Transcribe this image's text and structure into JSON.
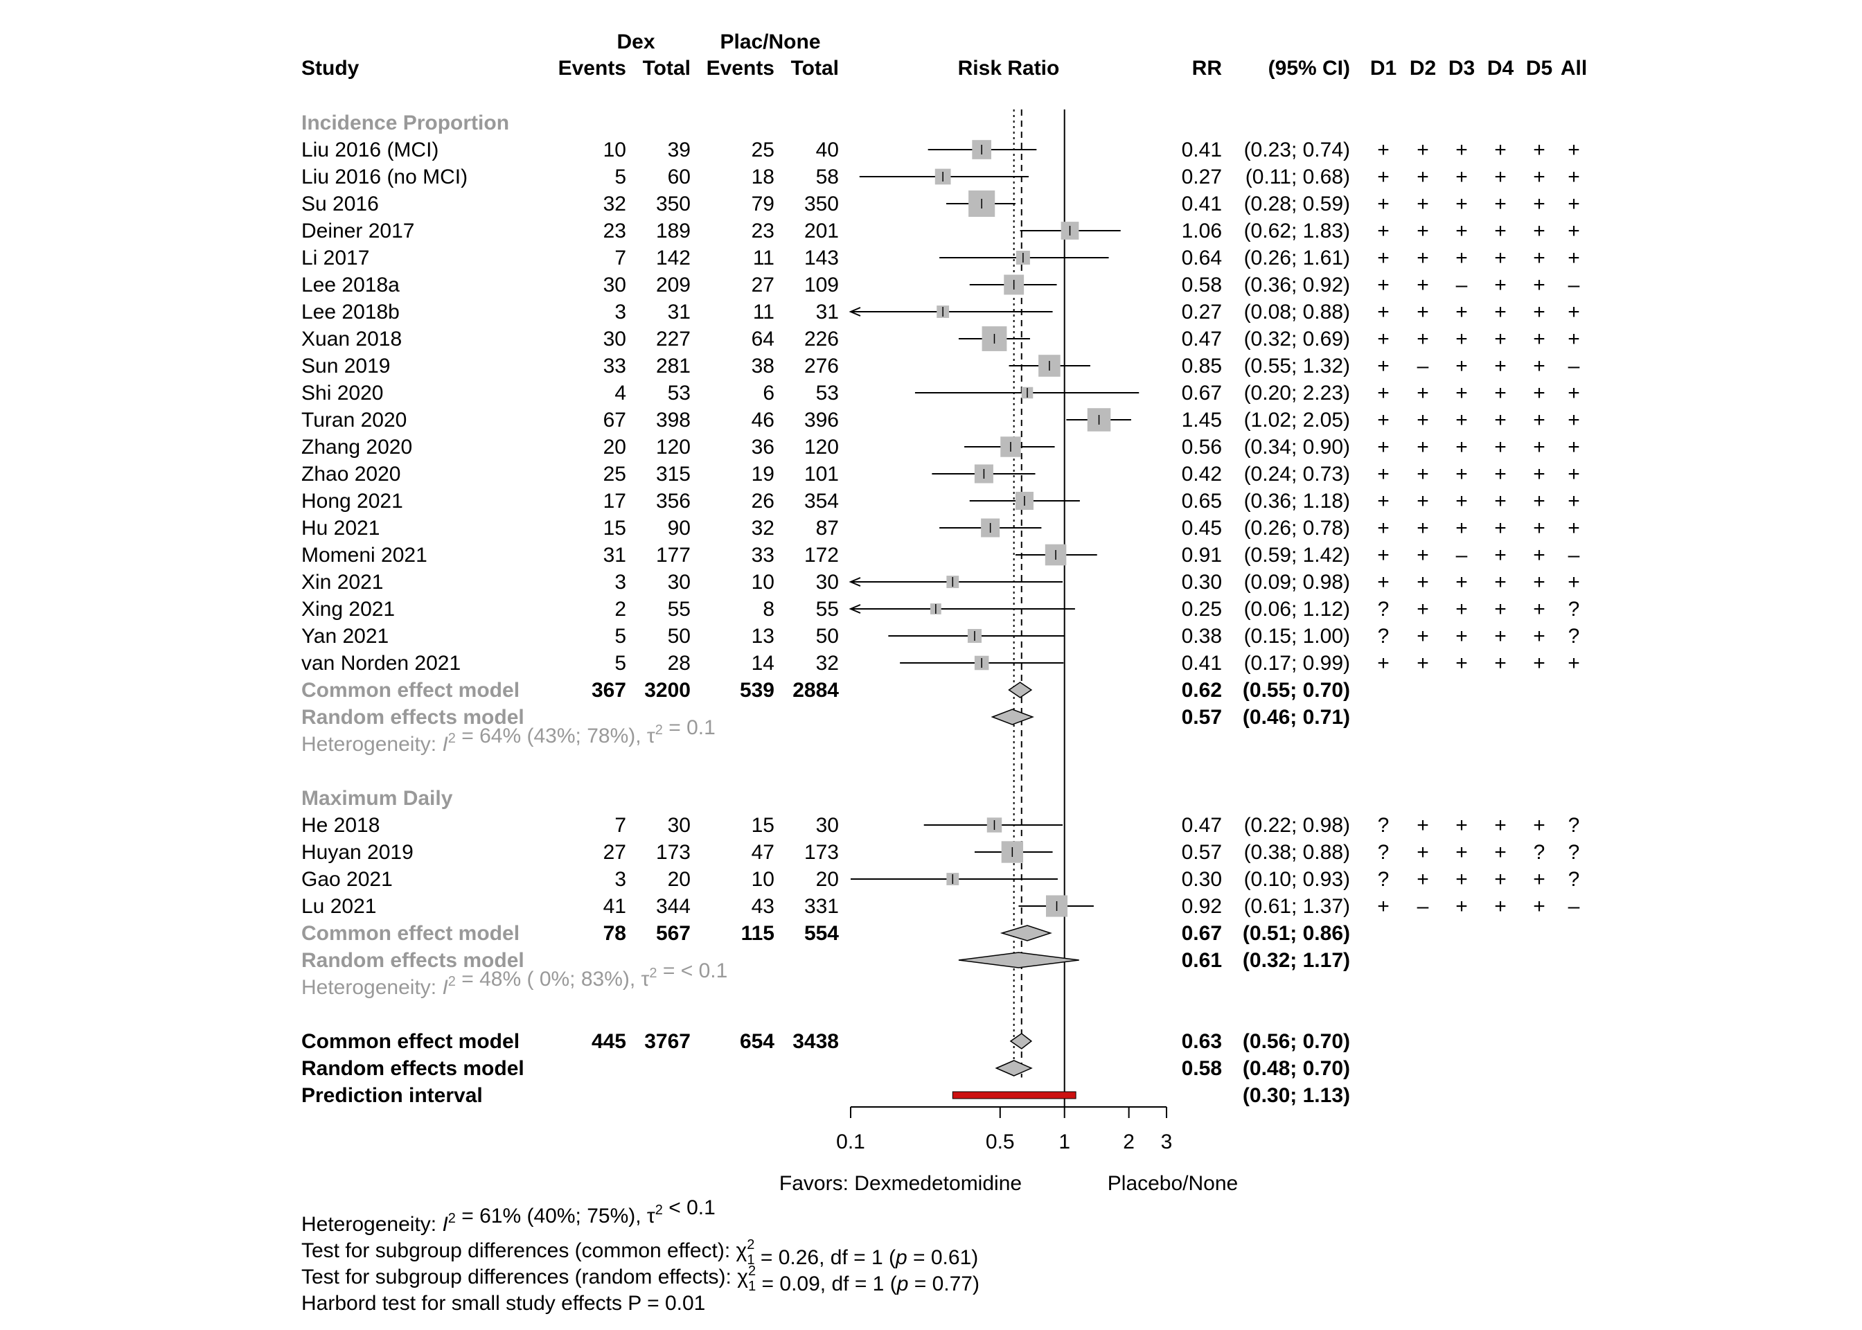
{
  "chart_data": {
    "type": "forest",
    "scale": "log",
    "headers": {
      "study": "Study",
      "dex": "Dex",
      "plac": "Plac/None",
      "events": "Events",
      "total": "Total",
      "risk_ratio": "Risk Ratio",
      "rr": "RR",
      "ci": "(95% CI)",
      "domains": [
        "D1",
        "D2",
        "D3",
        "D4",
        "D5",
        "All"
      ]
    },
    "groups": [
      {
        "name": "Incidence Proportion",
        "studies": [
          {
            "study": "Liu 2016 (MCI)",
            "e1": "10",
            "n1": "39",
            "e2": "25",
            "n2": "40",
            "rr": 0.41,
            "lo": 0.23,
            "hi": 0.74,
            "w": 3.2,
            "rr_text": "0.41",
            "ci_text": "(0.23; 0.74)",
            "rob": [
              "+",
              "+",
              "+",
              "+",
              "+",
              "+"
            ]
          },
          {
            "study": "Liu 2016 (no MCI)",
            "e1": "5",
            "n1": "60",
            "e2": "18",
            "n2": "58",
            "rr": 0.27,
            "lo": 0.11,
            "hi": 0.68,
            "w": 1.8,
            "rr_text": "0.27",
            "ci_text": "(0.11; 0.68)",
            "rob": [
              "+",
              "+",
              "+",
              "+",
              "+",
              "+"
            ]
          },
          {
            "study": "Su 2016",
            "e1": "32",
            "n1": "350",
            "e2": "79",
            "n2": "350",
            "rr": 0.41,
            "lo": 0.28,
            "hi": 0.59,
            "w": 7.5,
            "rr_text": "0.41",
            "ci_text": "(0.28; 0.59)",
            "rob": [
              "+",
              "+",
              "+",
              "+",
              "+",
              "+"
            ]
          },
          {
            "study": "Deiner 2017",
            "e1": "23",
            "n1": "189",
            "e2": "23",
            "n2": "201",
            "rr": 1.06,
            "lo": 0.62,
            "hi": 1.83,
            "w": 2.6,
            "rr_text": "1.06",
            "ci_text": "(0.62; 1.83)",
            "rob": [
              "+",
              "+",
              "+",
              "+",
              "+",
              "+"
            ]
          },
          {
            "study": "Li 2017",
            "e1": "7",
            "n1": "142",
            "e2": "11",
            "n2": "143",
            "rr": 0.64,
            "lo": 0.26,
            "hi": 1.61,
            "w": 1.2,
            "rr_text": "0.64",
            "ci_text": "(0.26; 1.61)",
            "rob": [
              "+",
              "+",
              "+",
              "+",
              "+",
              "+"
            ]
          },
          {
            "study": "Lee 2018a",
            "e1": "30",
            "n1": "209",
            "e2": "27",
            "n2": "109",
            "rr": 0.58,
            "lo": 0.36,
            "hi": 0.92,
            "w": 3.6,
            "rr_text": "0.58",
            "ci_text": "(0.36; 0.92)",
            "rob": [
              "+",
              "+",
              "–",
              "+",
              "+",
              "–"
            ]
          },
          {
            "study": "Lee 2018b",
            "e1": "3",
            "n1": "31",
            "e2": "11",
            "n2": "31",
            "rr": 0.27,
            "lo": 0.08,
            "hi": 0.88,
            "w": 0.8,
            "rr_text": "0.27",
            "ci_text": "(0.08; 0.88)",
            "rob": [
              "+",
              "+",
              "+",
              "+",
              "+",
              "+"
            ]
          },
          {
            "study": "Xuan 2018",
            "e1": "30",
            "n1": "227",
            "e2": "64",
            "n2": "226",
            "rr": 0.47,
            "lo": 0.32,
            "hi": 0.69,
            "w": 6.4,
            "rr_text": "0.47",
            "ci_text": "(0.32; 0.69)",
            "rob": [
              "+",
              "+",
              "+",
              "+",
              "+",
              "+"
            ]
          },
          {
            "study": "Sun 2019",
            "e1": "33",
            "n1": "281",
            "e2": "38",
            "n2": "276",
            "rr": 0.85,
            "lo": 0.55,
            "hi": 1.32,
            "w": 4.6,
            "rr_text": "0.85",
            "ci_text": "(0.55; 1.32)",
            "rob": [
              "+",
              "–",
              "+",
              "+",
              "+",
              "–"
            ]
          },
          {
            "study": "Shi 2020",
            "e1": "4",
            "n1": "53",
            "e2": "6",
            "n2": "53",
            "rr": 0.67,
            "lo": 0.2,
            "hi": 2.23,
            "w": 0.6,
            "rr_text": "0.67",
            "ci_text": "(0.20; 2.23)",
            "rob": [
              "+",
              "+",
              "+",
              "+",
              "+",
              "+"
            ]
          },
          {
            "study": "Turan 2020",
            "e1": "67",
            "n1": "398",
            "e2": "46",
            "n2": "396",
            "rr": 1.45,
            "lo": 1.02,
            "hi": 2.05,
            "w": 5.4,
            "rr_text": "1.45",
            "ci_text": "(1.02; 2.05)",
            "rob": [
              "+",
              "+",
              "+",
              "+",
              "+",
              "+"
            ]
          },
          {
            "study": "Zhang 2020",
            "e1": "20",
            "n1": "120",
            "e2": "36",
            "n2": "120",
            "rr": 0.56,
            "lo": 0.34,
            "hi": 0.9,
            "w": 3.8,
            "rr_text": "0.56",
            "ci_text": "(0.34; 0.90)",
            "rob": [
              "+",
              "+",
              "+",
              "+",
              "+",
              "+"
            ]
          },
          {
            "study": "Zhao 2020",
            "e1": "25",
            "n1": "315",
            "e2": "19",
            "n2": "101",
            "rr": 0.42,
            "lo": 0.24,
            "hi": 0.73,
            "w": 3.0,
            "rr_text": "0.42",
            "ci_text": "(0.24; 0.73)",
            "rob": [
              "+",
              "+",
              "+",
              "+",
              "+",
              "+"
            ]
          },
          {
            "study": "Hong 2021",
            "e1": "17",
            "n1": "356",
            "e2": "26",
            "n2": "354",
            "rr": 0.65,
            "lo": 0.36,
            "hi": 1.18,
            "w": 2.7,
            "rr_text": "0.65",
            "ci_text": "(0.36; 1.18)",
            "rob": [
              "+",
              "+",
              "+",
              "+",
              "+",
              "+"
            ]
          },
          {
            "study": "Hu 2021",
            "e1": "15",
            "n1": "90",
            "e2": "32",
            "n2": "87",
            "rr": 0.45,
            "lo": 0.26,
            "hi": 0.78,
            "w": 3.0,
            "rr_text": "0.45",
            "ci_text": "(0.26; 0.78)",
            "rob": [
              "+",
              "+",
              "+",
              "+",
              "+",
              "+"
            ]
          },
          {
            "study": "Momeni 2021",
            "e1": "31",
            "n1": "177",
            "e2": "33",
            "n2": "172",
            "rr": 0.91,
            "lo": 0.59,
            "hi": 1.42,
            "w": 4.2,
            "rr_text": "0.91",
            "ci_text": "(0.59; 1.42)",
            "rob": [
              "+",
              "+",
              "–",
              "+",
              "+",
              "–"
            ]
          },
          {
            "study": "Xin 2021",
            "e1": "3",
            "n1": "30",
            "e2": "10",
            "n2": "30",
            "rr": 0.3,
            "lo": 0.09,
            "hi": 0.98,
            "w": 0.8,
            "rr_text": "0.30",
            "ci_text": "(0.09; 0.98)",
            "rob": [
              "+",
              "+",
              "+",
              "+",
              "+",
              "+"
            ]
          },
          {
            "study": "Xing 2021",
            "e1": "2",
            "n1": "55",
            "e2": "8",
            "n2": "55",
            "rr": 0.25,
            "lo": 0.06,
            "hi": 1.12,
            "w": 0.5,
            "rr_text": "0.25",
            "ci_text": "(0.06; 1.12)",
            "rob": [
              "?",
              "+",
              "+",
              "+",
              "+",
              "?"
            ]
          },
          {
            "study": "Yan 2021",
            "e1": "5",
            "n1": "50",
            "e2": "13",
            "n2": "50",
            "rr": 0.38,
            "lo": 0.15,
            "hi": 1.0,
            "w": 1.2,
            "rr_text": "0.38",
            "ci_text": "(0.15; 1.00)",
            "rob": [
              "?",
              "+",
              "+",
              "+",
              "+",
              "?"
            ]
          },
          {
            "study": "van Norden 2021",
            "e1": "5",
            "n1": "28",
            "e2": "14",
            "n2": "32",
            "rr": 0.41,
            "lo": 0.17,
            "hi": 0.99,
            "w": 1.3,
            "rr_text": "0.41",
            "ci_text": "(0.17; 0.99)",
            "rob": [
              "+",
              "+",
              "+",
              "+",
              "+",
              "+"
            ]
          }
        ],
        "common": {
          "label": "Common effect model",
          "e1": "367",
          "n1": "3200",
          "e2": "539",
          "n2": "2884",
          "rr": 0.62,
          "lo": 0.55,
          "hi": 0.7,
          "rr_text": "0.62",
          "ci_text": "(0.55; 0.70)"
        },
        "random": {
          "label": "Random effects model",
          "rr": 0.57,
          "lo": 0.46,
          "hi": 0.71,
          "rr_text": "0.57",
          "ci_text": "(0.46; 0.71)"
        },
        "het": {
          "pre": "Heterogeneity: ",
          "i": "I",
          "sup": "2",
          "mid": " = 64% (43%; 78%), τ",
          "sup2": "2",
          "post": " = 0.1"
        }
      },
      {
        "name": "Maximum Daily",
        "studies": [
          {
            "study": "He 2018",
            "e1": "7",
            "n1": "30",
            "e2": "15",
            "n2": "30",
            "rr": 0.47,
            "lo": 0.22,
            "hi": 0.98,
            "w": 1.5,
            "rr_text": "0.47",
            "ci_text": "(0.22; 0.98)",
            "rob": [
              "?",
              "+",
              "+",
              "+",
              "+",
              "?"
            ]
          },
          {
            "study": "Huyan 2019",
            "e1": "27",
            "n1": "173",
            "e2": "47",
            "n2": "173",
            "rr": 0.57,
            "lo": 0.38,
            "hi": 0.88,
            "w": 4.5,
            "rr_text": "0.57",
            "ci_text": "(0.38; 0.88)",
            "rob": [
              "?",
              "+",
              "+",
              "+",
              "?",
              "?"
            ]
          },
          {
            "study": "Gao 2021",
            "e1": "3",
            "n1": "20",
            "e2": "10",
            "n2": "20",
            "rr": 0.3,
            "lo": 0.1,
            "hi": 0.93,
            "w": 0.8,
            "rr_text": "0.30",
            "ci_text": "(0.10; 0.93)",
            "rob": [
              "?",
              "+",
              "+",
              "+",
              "+",
              "?"
            ]
          },
          {
            "study": "Lu 2021",
            "e1": "41",
            "n1": "344",
            "e2": "43",
            "n2": "331",
            "rr": 0.92,
            "lo": 0.61,
            "hi": 1.37,
            "w": 4.4,
            "rr_text": "0.92",
            "ci_text": "(0.61; 1.37)",
            "rob": [
              "+",
              "–",
              "+",
              "+",
              "+",
              "–"
            ]
          }
        ],
        "common": {
          "label": "Common effect model",
          "e1": "78",
          "n1": "567",
          "e2": "115",
          "n2": "554",
          "rr": 0.67,
          "lo": 0.51,
          "hi": 0.86,
          "rr_text": "0.67",
          "ci_text": "(0.51; 0.86)"
        },
        "random": {
          "label": "Random effects model",
          "rr": 0.61,
          "lo": 0.32,
          "hi": 1.17,
          "rr_text": "0.61",
          "ci_text": "(0.32; 1.17)"
        },
        "het": {
          "pre": "Heterogeneity: ",
          "i": "I",
          "sup": "2",
          "mid": " = 48% ( 0%; 83%), τ",
          "sup2": "2",
          "post": " = < 0.1"
        }
      }
    ],
    "overall": {
      "common": {
        "label": "Common effect model",
        "e1": "445",
        "n1": "3767",
        "e2": "654",
        "n2": "3438",
        "rr": 0.63,
        "lo": 0.56,
        "hi": 0.7,
        "rr_text": "0.63",
        "ci_text": "(0.56; 0.70)"
      },
      "random": {
        "label": "Random effects model",
        "rr": 0.58,
        "lo": 0.48,
        "hi": 0.7,
        "rr_text": "0.58",
        "ci_text": "(0.48; 0.70)"
      },
      "prediction": {
        "label": "Prediction interval",
        "lo": 0.3,
        "hi": 1.13,
        "ci_text": "(0.30; 1.13)"
      }
    },
    "axis": {
      "ticks": [
        0.1,
        0.5,
        1,
        2,
        3
      ],
      "tick_labels": [
        "0.1",
        "0.5",
        "1",
        "2",
        "3"
      ],
      "xlim": [
        0.1,
        3
      ],
      "left_label": "Favors: Dexmedetomidine",
      "right_label": "Placebo/None"
    },
    "colors": {
      "box": "#bbbbbb",
      "diamond": "#bbbbbb",
      "prediction": "#cc1111",
      "grey_text": "#999999"
    },
    "footer": [
      {
        "parts": [
          {
            "t": "Heterogeneity: "
          },
          {
            "t": "I",
            "it": true
          },
          {
            "t": "2",
            "sup": true
          },
          {
            "t": " = 61% (40%; 75%), τ"
          },
          {
            "t": "2",
            "sup": true
          },
          {
            "t": " < 0.1"
          }
        ]
      },
      {
        "parts": [
          {
            "t": "Test for subgroup differences (common effect): χ"
          },
          {
            "t": "2",
            "sup": true
          },
          {
            "t": "1",
            "sub": true
          },
          {
            "t": " = 0.26, df = 1 ("
          },
          {
            "t": "p",
            "it": true
          },
          {
            "t": " = 0.61)"
          }
        ]
      },
      {
        "parts": [
          {
            "t": "Test for subgroup differences (random effects): χ"
          },
          {
            "t": "2",
            "sup": true
          },
          {
            "t": "1",
            "sub": true
          },
          {
            "t": " = 0.09, df = 1 ("
          },
          {
            "t": "p",
            "it": true
          },
          {
            "t": " = 0.77)"
          }
        ]
      },
      {
        "parts": [
          {
            "t": "Harbord test for small study effects P = 0.01"
          }
        ]
      }
    ]
  }
}
